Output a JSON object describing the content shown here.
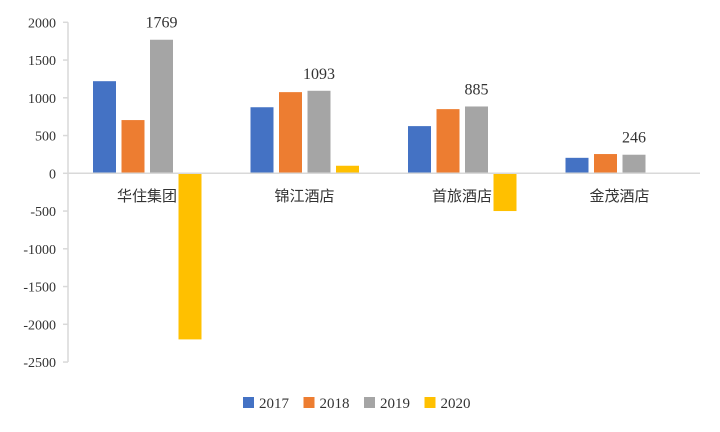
{
  "chart_data": {
    "type": "bar",
    "title": "",
    "xlabel": "",
    "ylabel": "",
    "categories": [
      "华住集团",
      "锦江酒店",
      "首旅酒店",
      "金茂酒店"
    ],
    "ylim": [
      -2500,
      2000
    ],
    "yticks": [
      2000,
      1500,
      1000,
      500,
      0,
      -500,
      -1000,
      -1500,
      -2000,
      -2500
    ],
    "grid": false,
    "legend": "bottom",
    "series": [
      {
        "name": "2017",
        "color": "#4472C4",
        "values": [
          1220,
          875,
          625,
          205
        ]
      },
      {
        "name": "2018",
        "color": "#ED7D31",
        "values": [
          705,
          1075,
          850,
          255
        ]
      },
      {
        "name": "2019",
        "color": "#A5A5A5",
        "values": [
          1769,
          1093,
          885,
          246
        ],
        "labels": [
          "1769",
          "1093",
          "885",
          "246"
        ]
      },
      {
        "name": "2020",
        "color": "#FFC000",
        "values": [
          -2200,
          100,
          -500,
          0
        ]
      }
    ]
  }
}
